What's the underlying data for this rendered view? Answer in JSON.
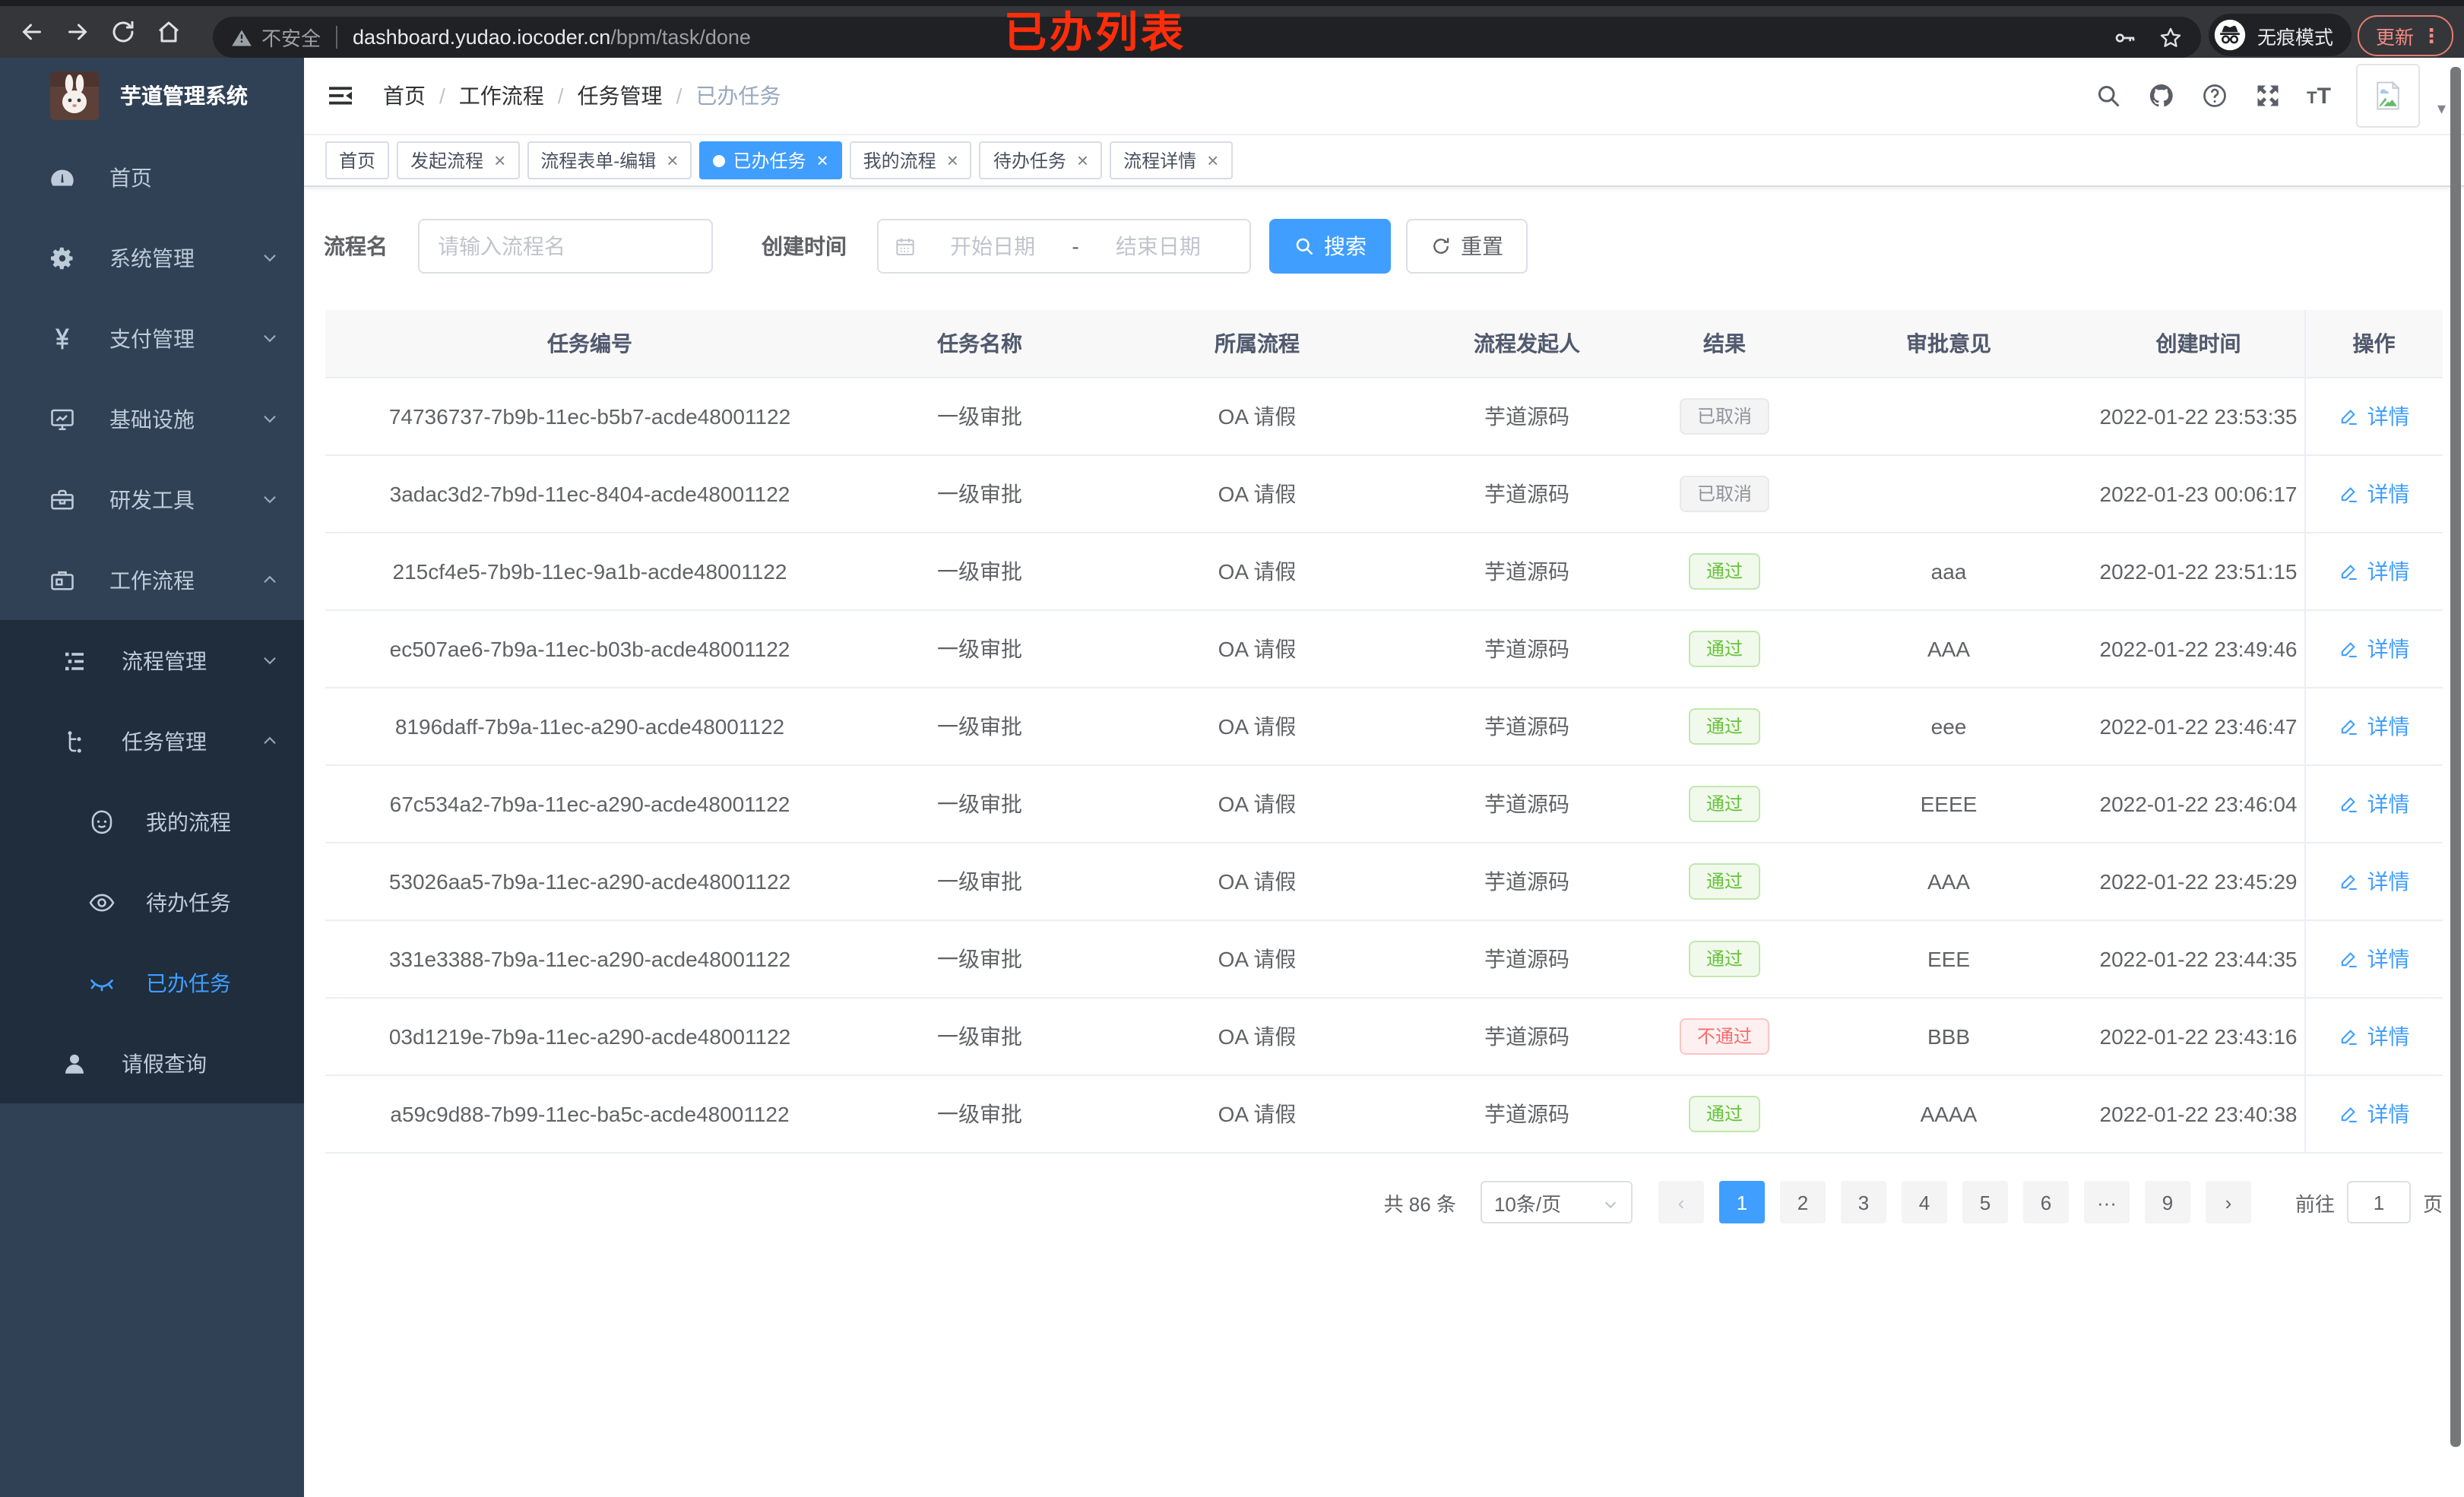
{
  "browser": {
    "security_label": "不安全",
    "url_host": "dashboard.yudao.iocoder.cn",
    "url_path": "/bpm/task/done",
    "incognito_label": "无痕模式",
    "update_label": "更新",
    "menu_dots": "⋮",
    "annotation": "已办列表"
  },
  "sidebar": {
    "title": "芋道管理系统",
    "menu": [
      {
        "label": "首页",
        "icon": "dashboard-icon"
      },
      {
        "label": "系统管理",
        "icon": "gear-icon",
        "arrow": "down"
      },
      {
        "label": "支付管理",
        "icon": "yen-icon",
        "arrow": "down"
      },
      {
        "label": "基础设施",
        "icon": "monitor-icon",
        "arrow": "down"
      },
      {
        "label": "研发工具",
        "icon": "toolbox-icon",
        "arrow": "down"
      },
      {
        "label": "工作流程",
        "icon": "briefcase-icon",
        "arrow": "up",
        "open": true,
        "children": [
          {
            "label": "流程管理",
            "icon": "tree-list-icon",
            "arrow": "down"
          },
          {
            "label": "任务管理",
            "icon": "flow-icon",
            "arrow": "up",
            "open": true,
            "children": [
              {
                "label": "我的流程",
                "icon": "face-icon"
              },
              {
                "label": "待办任务",
                "icon": "eye-open-icon"
              },
              {
                "label": "已办任务",
                "icon": "eye-closed-icon",
                "active": true
              }
            ]
          },
          {
            "label": "请假查询",
            "icon": "user-icon"
          }
        ]
      }
    ]
  },
  "navbar": {
    "breadcrumb": [
      "首页",
      "工作流程",
      "任务管理",
      "已办任务"
    ],
    "breadcrumb_separator": "/"
  },
  "tags": [
    {
      "label": "首页",
      "closable": false,
      "active": false
    },
    {
      "label": "发起流程",
      "closable": true,
      "active": false
    },
    {
      "label": "流程表单-编辑",
      "closable": true,
      "active": false
    },
    {
      "label": "已办任务",
      "closable": true,
      "active": true
    },
    {
      "label": "我的流程",
      "closable": true,
      "active": false
    },
    {
      "label": "待办任务",
      "closable": true,
      "active": false
    },
    {
      "label": "流程详情",
      "closable": true,
      "active": false
    }
  ],
  "filters": {
    "name_label": "流程名",
    "name_placeholder": "请输入流程名",
    "time_label": "创建时间",
    "start_placeholder": "开始日期",
    "range_separator": "-",
    "end_placeholder": "结束日期",
    "search_label": "搜索",
    "reset_label": "重置"
  },
  "table": {
    "columns": [
      "任务编号",
      "任务名称",
      "所属流程",
      "流程发起人",
      "结果",
      "审批意见",
      "创建时间",
      "操作"
    ],
    "detail_label": "详情",
    "rows": [
      {
        "id": "74736737-7b9b-11ec-b5b7-acde48001122",
        "name": "一级审批",
        "process": "OA 请假",
        "starter": "芋道源码",
        "result": "已取消",
        "opinion": "",
        "created": "2022-01-22 23:53:35"
      },
      {
        "id": "3adac3d2-7b9d-11ec-8404-acde48001122",
        "name": "一级审批",
        "process": "OA 请假",
        "starter": "芋道源码",
        "result": "已取消",
        "opinion": "",
        "created": "2022-01-23 00:06:17"
      },
      {
        "id": "215cf4e5-7b9b-11ec-9a1b-acde48001122",
        "name": "一级审批",
        "process": "OA 请假",
        "starter": "芋道源码",
        "result": "通过",
        "opinion": "aaa",
        "created": "2022-01-22 23:51:15"
      },
      {
        "id": "ec507ae6-7b9a-11ec-b03b-acde48001122",
        "name": "一级审批",
        "process": "OA 请假",
        "starter": "芋道源码",
        "result": "通过",
        "opinion": "AAA",
        "created": "2022-01-22 23:49:46"
      },
      {
        "id": "8196daff-7b9a-11ec-a290-acde48001122",
        "name": "一级审批",
        "process": "OA 请假",
        "starter": "芋道源码",
        "result": "通过",
        "opinion": "eee",
        "created": "2022-01-22 23:46:47"
      },
      {
        "id": "67c534a2-7b9a-11ec-a290-acde48001122",
        "name": "一级审批",
        "process": "OA 请假",
        "starter": "芋道源码",
        "result": "通过",
        "opinion": "EEEE",
        "created": "2022-01-22 23:46:04"
      },
      {
        "id": "53026aa5-7b9a-11ec-a290-acde48001122",
        "name": "一级审批",
        "process": "OA 请假",
        "starter": "芋道源码",
        "result": "通过",
        "opinion": "AAA",
        "created": "2022-01-22 23:45:29"
      },
      {
        "id": "331e3388-7b9a-11ec-a290-acde48001122",
        "name": "一级审批",
        "process": "OA 请假",
        "starter": "芋道源码",
        "result": "通过",
        "opinion": "EEE",
        "created": "2022-01-22 23:44:35"
      },
      {
        "id": "03d1219e-7b9a-11ec-a290-acde48001122",
        "name": "一级审批",
        "process": "OA 请假",
        "starter": "芋道源码",
        "result": "不通过",
        "opinion": "BBB",
        "created": "2022-01-22 23:43:16"
      },
      {
        "id": "a59c9d88-7b99-11ec-ba5c-acde48001122",
        "name": "一级审批",
        "process": "OA 请假",
        "starter": "芋道源码",
        "result": "通过",
        "opinion": "AAAA",
        "created": "2022-01-22 23:40:38"
      }
    ]
  },
  "pagination": {
    "total_label": "共 86 条",
    "page_size_label": "10条/页",
    "prev_label": "‹",
    "pages": [
      "1",
      "2",
      "3",
      "4",
      "5",
      "6",
      "···",
      "9"
    ],
    "active_page": "1",
    "next_label": "›",
    "goto_label": "前往",
    "goto_value": "1",
    "page_unit": "页"
  },
  "colors": {
    "accent": "#409eff",
    "success": "#67c23a",
    "danger": "#f56c6c",
    "info": "#909399",
    "sidebar_bg": "#304156",
    "submenu_bg": "#1f2d3d",
    "annotation_red": "#ff2d0a"
  }
}
